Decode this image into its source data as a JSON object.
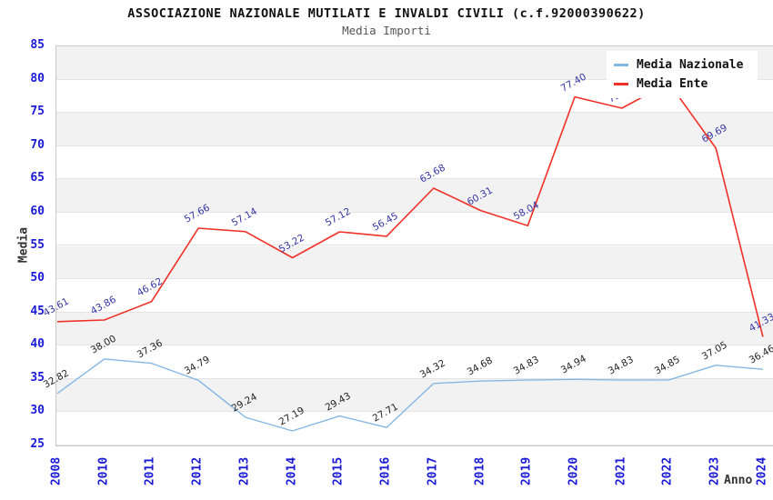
{
  "header": {
    "title": "ASSOCIAZIONE NAZIONALE MUTILATI E INVALDI CIVILI (c.f.92000390622)",
    "subtitle": "Media Importi"
  },
  "axes": {
    "y_label": "Media",
    "x_label": "Anno",
    "y_ticks": [
      85,
      80,
      75,
      70,
      65,
      60,
      55,
      50,
      45,
      40,
      35,
      30,
      25
    ],
    "x_ticks": [
      "2008",
      "2010",
      "2011",
      "2012",
      "2013",
      "2014",
      "2015",
      "2016",
      "2017",
      "2018",
      "2019",
      "2020",
      "2021",
      "2022",
      "2023",
      "2024"
    ]
  },
  "legend": {
    "items": [
      {
        "label": "Media Nazionale",
        "color": "#85b7e4"
      },
      {
        "label": "Media Ente",
        "color": "#f03128"
      }
    ]
  },
  "colors": {
    "tick_blue": "#1a1ad6",
    "band_gray": "#f2f2f2",
    "band_white": "#ffffff",
    "gridline": "#e4e4e4",
    "nazionale_line": "#85b7e4",
    "ente_line": "#f03128",
    "nazionale_label": "#222222",
    "ente_label": "#3434a4"
  },
  "chart_data": {
    "type": "line",
    "title": "ASSOCIAZIONE NAZIONALE MUTILATI E INVALDI CIVILI (c.f.92000390622)",
    "subtitle": "Media Importi",
    "xlabel": "Anno",
    "ylabel": "Media",
    "ylim": [
      25,
      85
    ],
    "y_tick_step": 5,
    "grid": "alternating horizontal bands every 5 units",
    "legend_position": "top-right",
    "categories": [
      "2008",
      "2010",
      "2011",
      "2012",
      "2013",
      "2014",
      "2015",
      "2016",
      "2017",
      "2018",
      "2019",
      "2020",
      "2021",
      "2022",
      "2023",
      "2024"
    ],
    "series": [
      {
        "name": "Media Nazionale",
        "color": "#85b7e4",
        "label_color": "#222222",
        "values": [
          32.82,
          38.0,
          37.36,
          34.79,
          29.24,
          27.19,
          29.43,
          27.71,
          34.32,
          34.68,
          34.83,
          34.94,
          34.83,
          34.85,
          37.05,
          36.46
        ],
        "labels": [
          "32.82",
          "38.00",
          "37.36",
          "34.79",
          "29.24",
          "27.19",
          "29.43",
          "27.71",
          "34.32",
          "34.68",
          "34.83",
          "34.94",
          "34.83",
          "34.85",
          "37.05",
          "36.46"
        ]
      },
      {
        "name": "Media Ente",
        "color": "#f03128",
        "label_color": "#3434a4",
        "values": [
          43.61,
          43.86,
          46.62,
          57.66,
          57.14,
          53.22,
          57.12,
          56.45,
          63.68,
          60.31,
          58.04,
          77.4,
          75.7,
          79.5,
          69.69,
          41.33
        ],
        "labels": [
          "43.61",
          "43.86",
          "46.62",
          "57.66",
          "57.14",
          "53.22",
          "57.12",
          "56.45",
          "63.68",
          "60.31",
          "58.04",
          "77.40",
          "75.70",
          "79.50",
          "69.69",
          "41.33"
        ],
        "note": "2021 label partially and 2022 label fully hidden behind legend in source image; those two values estimated from line position"
      }
    ]
  }
}
